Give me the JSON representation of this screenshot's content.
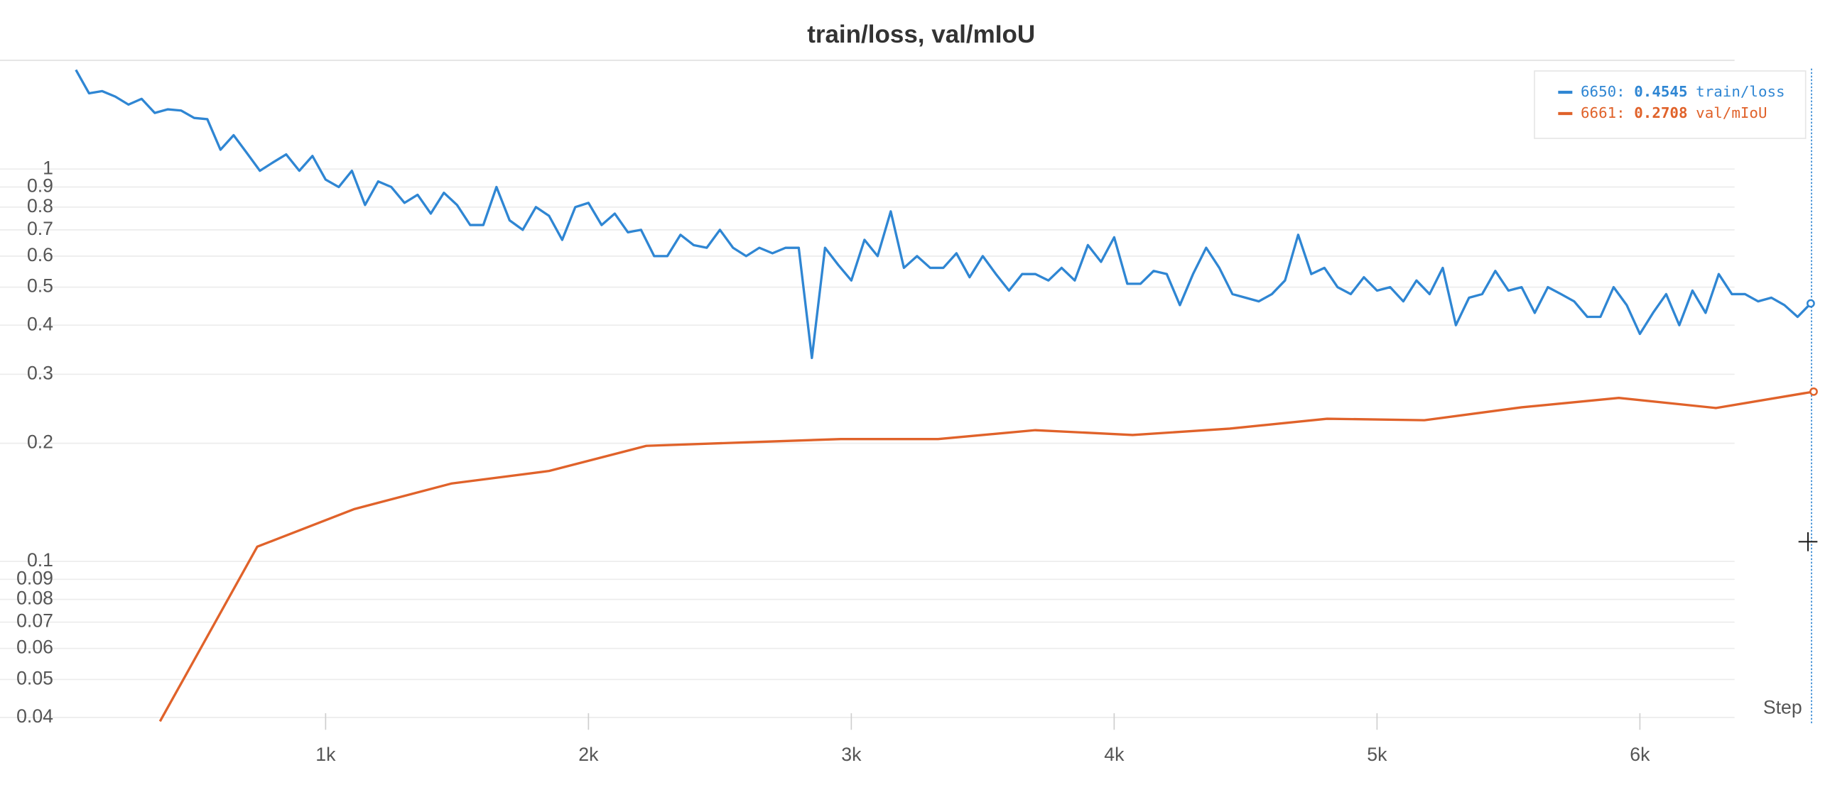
{
  "chart_data": {
    "type": "line",
    "title": "train/loss, val/mIoU",
    "x_label": "Step",
    "xlim": [
      0,
      6653
    ],
    "xticks": [
      {
        "value": 1000,
        "label": "1k"
      },
      {
        "value": 2000,
        "label": "2k"
      },
      {
        "value": 3000,
        "label": "3k"
      },
      {
        "value": 4000,
        "label": "4k"
      },
      {
        "value": 5000,
        "label": "5k"
      },
      {
        "value": 6000,
        "label": "6k"
      }
    ],
    "ylim": [
      0.038,
      1.88
    ],
    "log_y": true,
    "grid": true,
    "legend": "upper right",
    "yticks": [
      0.04,
      0.05,
      0.06,
      0.07,
      0.08,
      0.09,
      0.1,
      0.2,
      0.3,
      0.4,
      0.5,
      0.6,
      0.7,
      0.8,
      0.9,
      1
    ],
    "series": [
      {
        "name": "train/loss",
        "color": "#2f86d3",
        "x": [
          50,
          100,
          150,
          200,
          250,
          300,
          350,
          400,
          450,
          500,
          550,
          600,
          650,
          700,
          750,
          800,
          850,
          900,
          950,
          1000,
          1050,
          1100,
          1150,
          1200,
          1250,
          1300,
          1350,
          1400,
          1450,
          1500,
          1550,
          1600,
          1650,
          1700,
          1750,
          1800,
          1850,
          1900,
          1950,
          2000,
          2050,
          2100,
          2150,
          2200,
          2250,
          2300,
          2350,
          2400,
          2450,
          2500,
          2550,
          2600,
          2650,
          2700,
          2750,
          2800,
          2850,
          2900,
          2950,
          3000,
          3050,
          3100,
          3150,
          3200,
          3250,
          3300,
          3350,
          3400,
          3450,
          3500,
          3550,
          3600,
          3650,
          3700,
          3750,
          3800,
          3850,
          3900,
          3950,
          4000,
          4050,
          4100,
          4150,
          4200,
          4250,
          4300,
          4350,
          4400,
          4450,
          4500,
          4550,
          4600,
          4650,
          4700,
          4750,
          4800,
          4850,
          4900,
          4950,
          5000,
          5050,
          5100,
          5150,
          5200,
          5250,
          5300,
          5350,
          5400,
          5450,
          5500,
          5550,
          5600,
          5650,
          5700,
          5750,
          5800,
          5850,
          5900,
          5950,
          6000,
          6050,
          6100,
          6150,
          6200,
          6250,
          6300,
          6350,
          6400,
          6450,
          6500,
          6550,
          6600,
          6650
        ],
        "values": [
          1.79,
          1.56,
          1.58,
          1.53,
          1.46,
          1.51,
          1.39,
          1.42,
          1.41,
          1.35,
          1.34,
          1.12,
          1.22,
          1.1,
          0.99,
          1.04,
          1.09,
          0.99,
          1.08,
          0.94,
          0.9,
          0.99,
          0.81,
          0.93,
          0.9,
          0.82,
          0.86,
          0.77,
          0.87,
          0.81,
          0.72,
          0.72,
          0.9,
          0.74,
          0.7,
          0.8,
          0.76,
          0.66,
          0.8,
          0.82,
          0.72,
          0.77,
          0.69,
          0.7,
          0.6,
          0.6,
          0.68,
          0.64,
          0.63,
          0.7,
          0.63,
          0.6,
          0.63,
          0.61,
          0.63,
          0.63,
          0.33,
          0.63,
          0.57,
          0.52,
          0.66,
          0.6,
          0.78,
          0.56,
          0.6,
          0.56,
          0.56,
          0.61,
          0.53,
          0.6,
          0.54,
          0.49,
          0.54,
          0.54,
          0.52,
          0.56,
          0.52,
          0.64,
          0.58,
          0.67,
          0.51,
          0.51,
          0.55,
          0.54,
          0.45,
          0.54,
          0.63,
          0.56,
          0.48,
          0.47,
          0.46,
          0.48,
          0.52,
          0.68,
          0.54,
          0.56,
          0.5,
          0.48,
          0.53,
          0.49,
          0.5,
          0.46,
          0.52,
          0.48,
          0.56,
          0.4,
          0.47,
          0.48,
          0.55,
          0.49,
          0.5,
          0.43,
          0.5,
          0.48,
          0.46,
          0.42,
          0.42,
          0.5,
          0.45,
          0.38,
          0.43,
          0.48,
          0.4,
          0.49,
          0.43,
          0.54,
          0.48,
          0.48,
          0.46,
          0.47,
          0.45,
          0.42,
          0.4545
        ]
      },
      {
        "name": "val/mIoU",
        "color": "#e0622a",
        "x": [
          370,
          740,
          1110,
          1480,
          1850,
          2220,
          2590,
          2960,
          3330,
          3700,
          4070,
          4440,
          4810,
          5180,
          5550,
          5920,
          6290,
          6661
        ],
        "values": [
          0.0391,
          0.109,
          0.136,
          0.158,
          0.17,
          0.197,
          0.201,
          0.205,
          0.205,
          0.216,
          0.21,
          0.218,
          0.231,
          0.229,
          0.247,
          0.261,
          0.246,
          0.2708
        ]
      }
    ]
  }
}
